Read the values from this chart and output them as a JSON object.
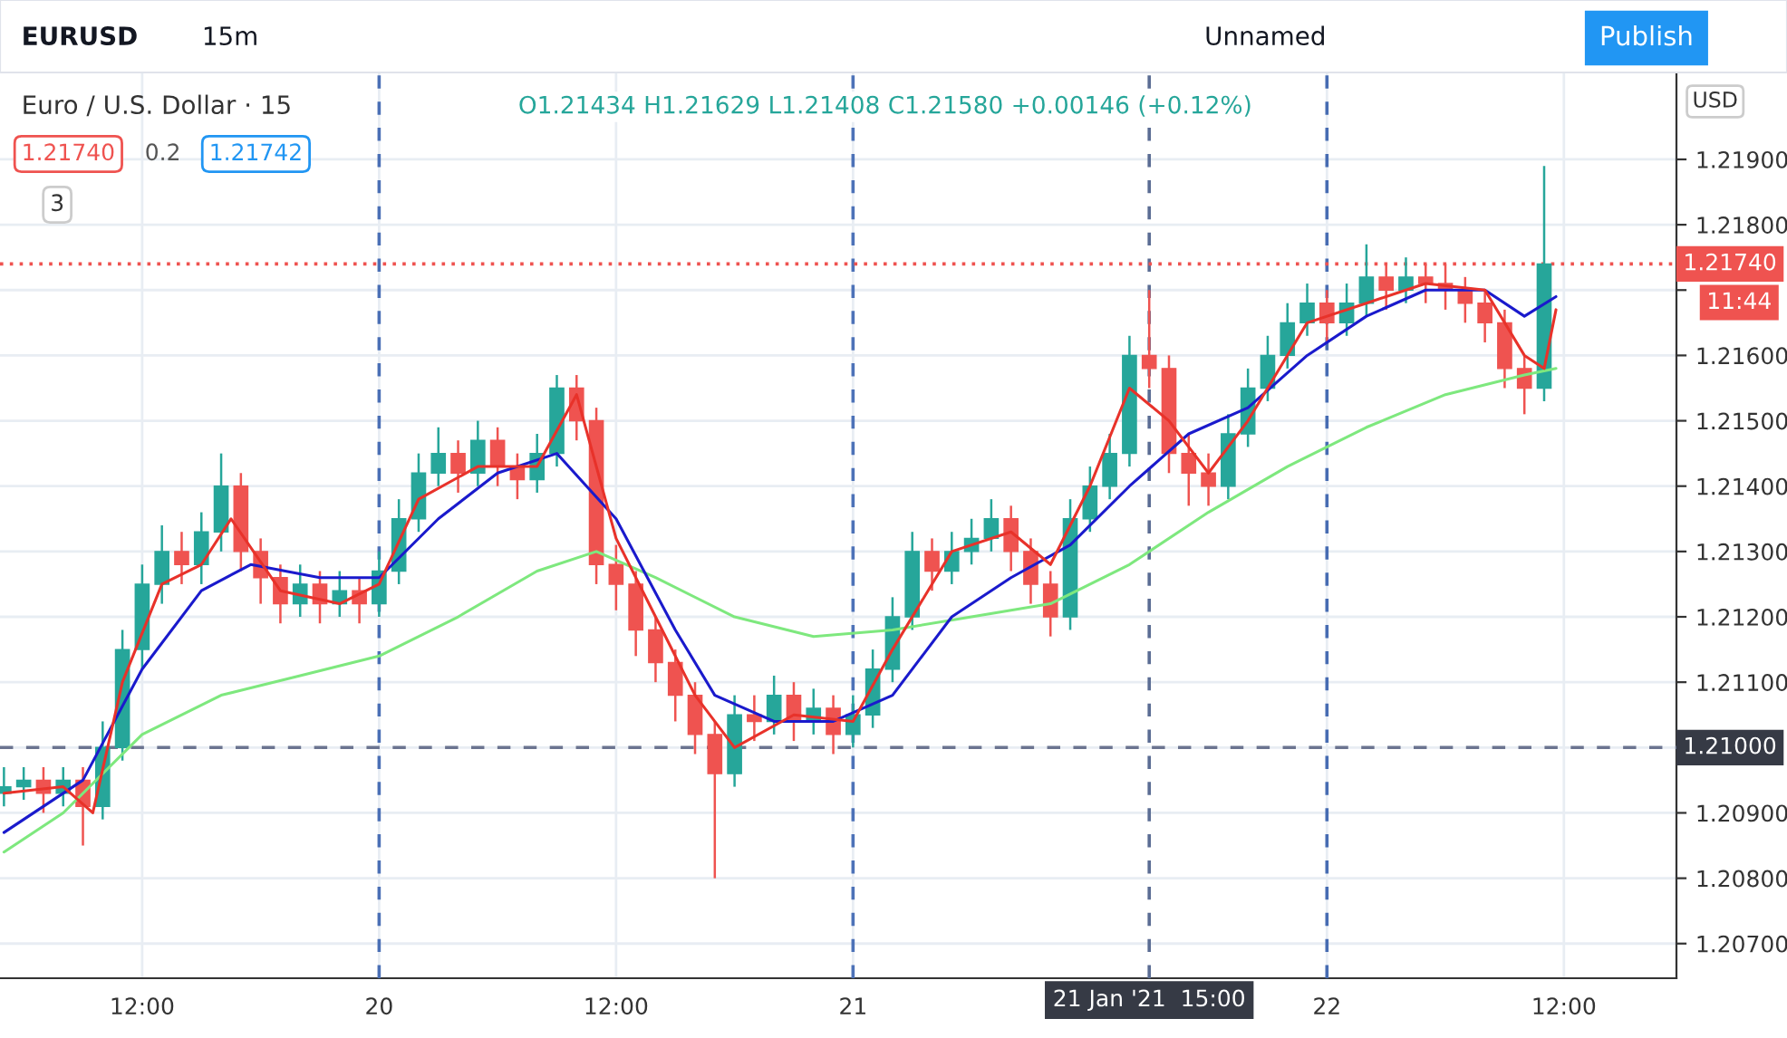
{
  "chart_data": {
    "type": "candlestick",
    "title": "Euro / U.S. Dollar · 15",
    "subtitle": "O1.21434 H1.21629 L1.21408 C1.21580 +0.00146 (+0.12%)",
    "annotations": [
      "EURUSD",
      "15m",
      "Unnamed",
      "Publish",
      "1.21740",
      "0.2",
      "1.21742",
      "3",
      "USD",
      "11:44"
    ],
    "colors": [
      "#26a69a",
      "#26a69a",
      "#ef5350",
      "#26a69a",
      "#ef5350",
      "#26a69a",
      "#26a69a",
      "#26a69a",
      "#26a69a",
      "#ef5350",
      "#26a69a",
      "#26a69a",
      "#ef5350",
      "#ef5350",
      "#ef5350",
      "#26a69a",
      "#ef5350",
      "#26a69a",
      "#ef5350",
      "#26a69a",
      "#26a69a",
      "#26a69a",
      "#26a69a",
      "#ef5350",
      "#26a69a",
      "#ef5350",
      "#ef5350",
      "#26a69a",
      "#26a69a",
      "#ef5350",
      "#ef5350",
      "#ef5350",
      "#ef5350",
      "#ef5350",
      "#ef5350",
      "#ef5350",
      "#ef5350",
      "#26a69a",
      "#ef5350",
      "#26a69a",
      "#ef5350",
      "#26a69a",
      "#ef5350",
      "#26a69a",
      "#26a69a",
      "#26a69a",
      "#26a69a",
      "#ef5350",
      "#26a69a",
      "#26a69a",
      "#26a69a",
      "#ef5350",
      "#ef5350",
      "#ef5350",
      "#26a69a",
      "#26a69a",
      "#26a69a",
      "#26a69a",
      "#ef5350",
      "#ef5350",
      "#ef5350",
      "#ef5350",
      "#26a69a",
      "#26a69a",
      "#26a69a",
      "#26a69a",
      "#26a69a",
      "#ef5350",
      "#26a69a",
      "#26a69a",
      "#ef5350",
      "#26a69a",
      "#ef5350",
      "#ef5350",
      "#ef5350",
      "#ef5350",
      "#ef5350",
      "#ef5350",
      "#26a69a"
    ],
    "x": [
      "2021-01-19T05:00",
      "2021-01-19T06:00",
      "2021-01-19T07:00",
      "2021-01-19T08:00",
      "2021-01-19T09:00",
      "2021-01-19T10:00",
      "2021-01-19T11:00",
      "2021-01-19T12:00",
      "2021-01-19T13:00",
      "2021-01-19T14:00",
      "2021-01-19T15:00",
      "2021-01-19T16:00",
      "2021-01-19T17:00",
      "2021-01-19T18:00",
      "2021-01-19T19:00",
      "2021-01-19T20:00",
      "2021-01-19T21:00",
      "2021-01-19T22:00",
      "2021-01-19T23:00",
      "2021-01-20T00:00",
      "2021-01-20T01:00",
      "2021-01-20T02:00",
      "2021-01-20T03:00",
      "2021-01-20T04:00",
      "2021-01-20T05:00",
      "2021-01-20T06:00",
      "2021-01-20T07:00",
      "2021-01-20T08:00",
      "2021-01-20T09:00",
      "2021-01-20T10:00",
      "2021-01-20T11:00",
      "2021-01-20T12:00",
      "2021-01-20T13:00",
      "2021-01-20T14:00",
      "2021-01-20T15:00",
      "2021-01-20T16:00",
      "2021-01-20T17:00",
      "2021-01-20T18:00",
      "2021-01-20T19:00",
      "2021-01-20T20:00",
      "2021-01-20T21:00",
      "2021-01-20T22:00",
      "2021-01-20T23:00",
      "2021-01-21T00:00",
      "2021-01-21T01:00",
      "2021-01-21T02:00",
      "2021-01-21T03:00",
      "2021-01-21T04:00",
      "2021-01-21T05:00",
      "2021-01-21T06:00",
      "2021-01-21T07:00",
      "2021-01-21T08:00",
      "2021-01-21T09:00",
      "2021-01-21T10:00",
      "2021-01-21T11:00",
      "2021-01-21T12:00",
      "2021-01-21T13:00",
      "2021-01-21T14:00",
      "2021-01-21T15:00",
      "2021-01-21T16:00",
      "2021-01-21T17:00",
      "2021-01-21T18:00",
      "2021-01-21T19:00",
      "2021-01-21T20:00",
      "2021-01-21T21:00",
      "2021-01-21T22:00",
      "2021-01-21T23:00",
      "2021-01-22T00:00",
      "2021-01-22T01:00",
      "2021-01-22T02:00",
      "2021-01-22T03:00",
      "2021-01-22T04:00",
      "2021-01-22T05:00",
      "2021-01-22T06:00",
      "2021-01-22T07:00",
      "2021-01-22T08:00",
      "2021-01-22T09:00",
      "2021-01-22T10:00",
      "2021-01-22T11:00"
    ],
    "ohlc": [
      [
        1.2093,
        1.2097,
        1.2091,
        1.2094
      ],
      [
        1.2094,
        1.2097,
        1.2092,
        1.2095
      ],
      [
        1.2095,
        1.2097,
        1.209,
        1.2093
      ],
      [
        1.2093,
        1.2097,
        1.2091,
        1.2095
      ],
      [
        1.2095,
        1.2097,
        1.2085,
        1.2091
      ],
      [
        1.2091,
        1.2104,
        1.2089,
        1.21
      ],
      [
        1.21,
        1.2118,
        1.2098,
        1.2115
      ],
      [
        1.2115,
        1.2128,
        1.2112,
        1.2125
      ],
      [
        1.2125,
        1.2134,
        1.2122,
        1.213
      ],
      [
        1.213,
        1.2133,
        1.2125,
        1.2128
      ],
      [
        1.2128,
        1.2136,
        1.2125,
        1.2133
      ],
      [
        1.2133,
        1.2145,
        1.213,
        1.214
      ],
      [
        1.214,
        1.2142,
        1.2127,
        1.213
      ],
      [
        1.213,
        1.2132,
        1.2122,
        1.2126
      ],
      [
        1.2126,
        1.2128,
        1.2119,
        1.2122
      ],
      [
        1.2122,
        1.2128,
        1.212,
        1.2125
      ],
      [
        1.2125,
        1.2127,
        1.2119,
        1.2122
      ],
      [
        1.2122,
        1.2127,
        1.212,
        1.2124
      ],
      [
        1.2124,
        1.2126,
        1.2119,
        1.2122
      ],
      [
        1.2122,
        1.213,
        1.212,
        1.2127
      ],
      [
        1.2127,
        1.2138,
        1.2125,
        1.2135
      ],
      [
        1.2135,
        1.2145,
        1.2133,
        1.2142
      ],
      [
        1.2142,
        1.2149,
        1.214,
        1.2145
      ],
      [
        1.2145,
        1.2147,
        1.2139,
        1.2142
      ],
      [
        1.2142,
        1.215,
        1.214,
        1.2147
      ],
      [
        1.2147,
        1.2149,
        1.214,
        1.2143
      ],
      [
        1.2143,
        1.2145,
        1.2138,
        1.2141
      ],
      [
        1.2141,
        1.2148,
        1.2139,
        1.2145
      ],
      [
        1.2145,
        1.2157,
        1.2143,
        1.2155
      ],
      [
        1.2155,
        1.2157,
        1.2147,
        1.215
      ],
      [
        1.215,
        1.2152,
        1.2125,
        1.2128
      ],
      [
        1.2128,
        1.2131,
        1.2121,
        1.2125
      ],
      [
        1.2125,
        1.2127,
        1.2114,
        1.2118
      ],
      [
        1.2118,
        1.212,
        1.211,
        1.2113
      ],
      [
        1.2113,
        1.2115,
        1.2104,
        1.2108
      ],
      [
        1.2108,
        1.211,
        1.2099,
        1.2102
      ],
      [
        1.2102,
        1.2104,
        1.208,
        1.2096
      ],
      [
        1.2096,
        1.2108,
        1.2094,
        1.2105
      ],
      [
        1.2105,
        1.2108,
        1.2101,
        1.2104
      ],
      [
        1.2104,
        1.2111,
        1.2102,
        1.2108
      ],
      [
        1.2108,
        1.211,
        1.2101,
        1.2104
      ],
      [
        1.2104,
        1.2109,
        1.2102,
        1.2106
      ],
      [
        1.2106,
        1.2108,
        1.2099,
        1.2102
      ],
      [
        1.2102,
        1.2108,
        1.21,
        1.2105
      ],
      [
        1.2105,
        1.2115,
        1.2103,
        1.2112
      ],
      [
        1.2112,
        1.2123,
        1.211,
        1.212
      ],
      [
        1.212,
        1.2133,
        1.2118,
        1.213
      ],
      [
        1.213,
        1.2132,
        1.2124,
        1.2127
      ],
      [
        1.2127,
        1.2133,
        1.2125,
        1.213
      ],
      [
        1.213,
        1.2135,
        1.2128,
        1.2132
      ],
      [
        1.2132,
        1.2138,
        1.213,
        1.2135
      ],
      [
        1.2135,
        1.2137,
        1.2127,
        1.213
      ],
      [
        1.213,
        1.2132,
        1.2122,
        1.2125
      ],
      [
        1.2125,
        1.2127,
        1.2117,
        1.212
      ],
      [
        1.212,
        1.2138,
        1.2118,
        1.2135
      ],
      [
        1.2135,
        1.2143,
        1.2133,
        1.214
      ],
      [
        1.214,
        1.2148,
        1.2138,
        1.2145
      ],
      [
        1.2145,
        1.2163,
        1.2143,
        1.216
      ],
      [
        1.216,
        1.217,
        1.2155,
        1.2158
      ],
      [
        1.2158,
        1.216,
        1.2142,
        1.2145
      ],
      [
        1.2145,
        1.2148,
        1.2137,
        1.2142
      ],
      [
        1.2142,
        1.2145,
        1.2137,
        1.214
      ],
      [
        1.214,
        1.2151,
        1.2138,
        1.2148
      ],
      [
        1.2148,
        1.2158,
        1.2146,
        1.2155
      ],
      [
        1.2155,
        1.2163,
        1.2153,
        1.216
      ],
      [
        1.216,
        1.2168,
        1.2158,
        1.2165
      ],
      [
        1.2165,
        1.2171,
        1.2163,
        1.2168
      ],
      [
        1.2168,
        1.217,
        1.2162,
        1.2165
      ],
      [
        1.2165,
        1.2171,
        1.2163,
        1.2168
      ],
      [
        1.2168,
        1.2177,
        1.2166,
        1.2172
      ],
      [
        1.2172,
        1.2174,
        1.2167,
        1.217
      ],
      [
        1.217,
        1.2175,
        1.2168,
        1.2172
      ],
      [
        1.2172,
        1.2174,
        1.2168,
        1.2171
      ],
      [
        1.2171,
        1.2174,
        1.2167,
        1.217
      ],
      [
        1.217,
        1.2172,
        1.2165,
        1.2168
      ],
      [
        1.2168,
        1.217,
        1.2162,
        1.2165
      ],
      [
        1.2165,
        1.2167,
        1.2155,
        1.2158
      ],
      [
        1.2158,
        1.216,
        1.2151,
        1.2155
      ],
      [
        1.2155,
        1.2189,
        1.2153,
        1.2174
      ]
    ],
    "series": [
      {
        "type": "line",
        "color": "#7ee87e",
        "x": [
          "2021-01-19T05:00",
          "2021-01-19T08:00",
          "2021-01-19T12:00",
          "2021-01-19T16:00",
          "2021-01-19T20:00",
          "2021-01-20T00:00",
          "2021-01-20T04:00",
          "2021-01-20T08:00",
          "2021-01-20T11:00",
          "2021-01-20T14:00",
          "2021-01-20T18:00",
          "2021-01-20T22:00",
          "2021-01-21T02:00",
          "2021-01-21T06:00",
          "2021-01-21T10:00",
          "2021-01-21T14:00",
          "2021-01-21T18:00",
          "2021-01-21T22:00",
          "2021-01-22T02:00",
          "2021-01-22T06:00",
          "2021-01-22T10:00",
          "2021-01-22T11:36"
        ],
        "values": [
          1.2084,
          1.209,
          1.2102,
          1.2108,
          1.2111,
          1.2114,
          1.212,
          1.2127,
          1.213,
          1.2126,
          1.212,
          1.2117,
          1.2118,
          1.212,
          1.2122,
          1.2128,
          1.2136,
          1.2143,
          1.2149,
          1.2154,
          1.2157,
          1.2158
        ]
      },
      {
        "type": "line",
        "color": "#1a1acc",
        "x": [
          "2021-01-19T05:00",
          "2021-01-19T09:00",
          "2021-01-19T12:00",
          "2021-01-19T15:00",
          "2021-01-19T17:30",
          "2021-01-19T21:00",
          "2021-01-20T00:00",
          "2021-01-20T03:00",
          "2021-01-20T06:00",
          "2021-01-20T09:00",
          "2021-01-20T12:00",
          "2021-01-20T15:00",
          "2021-01-20T17:00",
          "2021-01-20T20:00",
          "2021-01-20T23:00",
          "2021-01-21T02:00",
          "2021-01-21T05:00",
          "2021-01-21T08:00",
          "2021-01-21T11:00",
          "2021-01-21T14:00",
          "2021-01-21T17:00",
          "2021-01-21T20:00",
          "2021-01-21T23:00",
          "2021-01-22T02:00",
          "2021-01-22T05:00",
          "2021-01-22T08:00",
          "2021-01-22T10:00",
          "2021-01-22T11:36"
        ],
        "values": [
          1.2087,
          1.2095,
          1.2112,
          1.2124,
          1.2128,
          1.2126,
          1.2126,
          1.2135,
          1.2142,
          1.2145,
          1.2135,
          1.2118,
          1.2108,
          1.2104,
          1.2104,
          1.2108,
          1.212,
          1.2126,
          1.2131,
          1.214,
          1.2148,
          1.2152,
          1.216,
          1.2166,
          1.217,
          1.217,
          1.2166,
          1.2169
        ]
      },
      {
        "type": "line",
        "color": "#e8322a",
        "x": [
          "2021-01-19T05:00",
          "2021-01-19T08:00",
          "2021-01-19T09:30",
          "2021-01-19T11:00",
          "2021-01-19T13:00",
          "2021-01-19T15:00",
          "2021-01-19T16:30",
          "2021-01-19T19:00",
          "2021-01-19T22:00",
          "2021-01-20T00:00",
          "2021-01-20T02:00",
          "2021-01-20T05:00",
          "2021-01-20T08:00",
          "2021-01-20T10:00",
          "2021-01-20T12:00",
          "2021-01-20T14:00",
          "2021-01-20T16:00",
          "2021-01-20T18:00",
          "2021-01-20T21:00",
          "2021-01-21T00:00",
          "2021-01-21T02:00",
          "2021-01-21T05:00",
          "2021-01-21T08:00",
          "2021-01-21T10:00",
          "2021-01-21T12:00",
          "2021-01-21T14:00",
          "2021-01-21T16:00",
          "2021-01-21T18:00",
          "2021-01-21T20:00",
          "2021-01-21T23:00",
          "2021-01-22T02:00",
          "2021-01-22T05:00",
          "2021-01-22T08:00",
          "2021-01-22T10:00",
          "2021-01-22T11:00",
          "2021-01-22T11:36"
        ],
        "values": [
          1.2093,
          1.2094,
          1.209,
          1.211,
          1.2125,
          1.2128,
          1.2135,
          1.2124,
          1.2122,
          1.2125,
          1.2138,
          1.2143,
          1.2143,
          1.2154,
          1.2132,
          1.212,
          1.2108,
          1.21,
          1.2105,
          1.2104,
          1.2115,
          1.213,
          1.2133,
          1.2128,
          1.214,
          1.2155,
          1.215,
          1.2142,
          1.215,
          1.2165,
          1.2168,
          1.2171,
          1.217,
          1.216,
          1.2158,
          1.2167
        ]
      }
    ],
    "xlim": [
      "2021-01-19T04:48",
      "2021-01-22T17:42"
    ],
    "xticks": [
      {
        "value": "2021-01-19T12:00",
        "label": "12:00"
      },
      {
        "value": "2021-01-20",
        "label": "20"
      },
      {
        "value": "2021-01-20T12:00",
        "label": "12:00"
      },
      {
        "value": "2021-01-21",
        "label": "21"
      },
      {
        "value": "2021-01-22",
        "label": "22"
      },
      {
        "value": "2021-01-22T12:00",
        "label": "12:00"
      }
    ],
    "ylim": [
      1.20647,
      1.22033
    ],
    "yticks": [
      {
        "value": 1.207,
        "label": "1.20700"
      },
      {
        "value": 1.208,
        "label": "1.20800"
      },
      {
        "value": 1.209,
        "label": "1.20900"
      },
      {
        "value": 1.21,
        "label": null
      },
      {
        "value": 1.211,
        "label": "1.21100"
      },
      {
        "value": 1.212,
        "label": "1.21200"
      },
      {
        "value": 1.213,
        "label": "1.21300"
      },
      {
        "value": 1.214,
        "label": "1.21400"
      },
      {
        "value": 1.215,
        "label": "1.21500"
      },
      {
        "value": 1.216,
        "label": "1.21600"
      },
      {
        "value": 1.217,
        "label": null
      },
      {
        "value": 1.218,
        "label": "1.21800"
      },
      {
        "value": 1.219,
        "label": "1.21900"
      }
    ],
    "ref_lines": [
      {
        "axis": "x",
        "value": "2021-01-20",
        "color": "#4a6fb5",
        "line_style": "dashed"
      },
      {
        "axis": "x",
        "value": "2021-01-21",
        "color": "#4d72b8",
        "line_style": "dashed"
      },
      {
        "axis": "x",
        "value": "2021-01-22",
        "color": "#476cb2",
        "line_style": "dashed"
      },
      {
        "axis": "x",
        "value": "2021-01-21T15:00",
        "label": "21 Jan '21  15:00",
        "color": "#5b6d94",
        "line_style": "dashed"
      },
      {
        "axis": "y",
        "value": 1.2174,
        "label": "1.21740",
        "color": "#ef5350",
        "line_style": "dotted"
      },
      {
        "axis": "y",
        "value": 1.21,
        "label": "1.21000",
        "color": "#6b7490",
        "line_style": "dashed"
      }
    ],
    "grid": true
  }
}
